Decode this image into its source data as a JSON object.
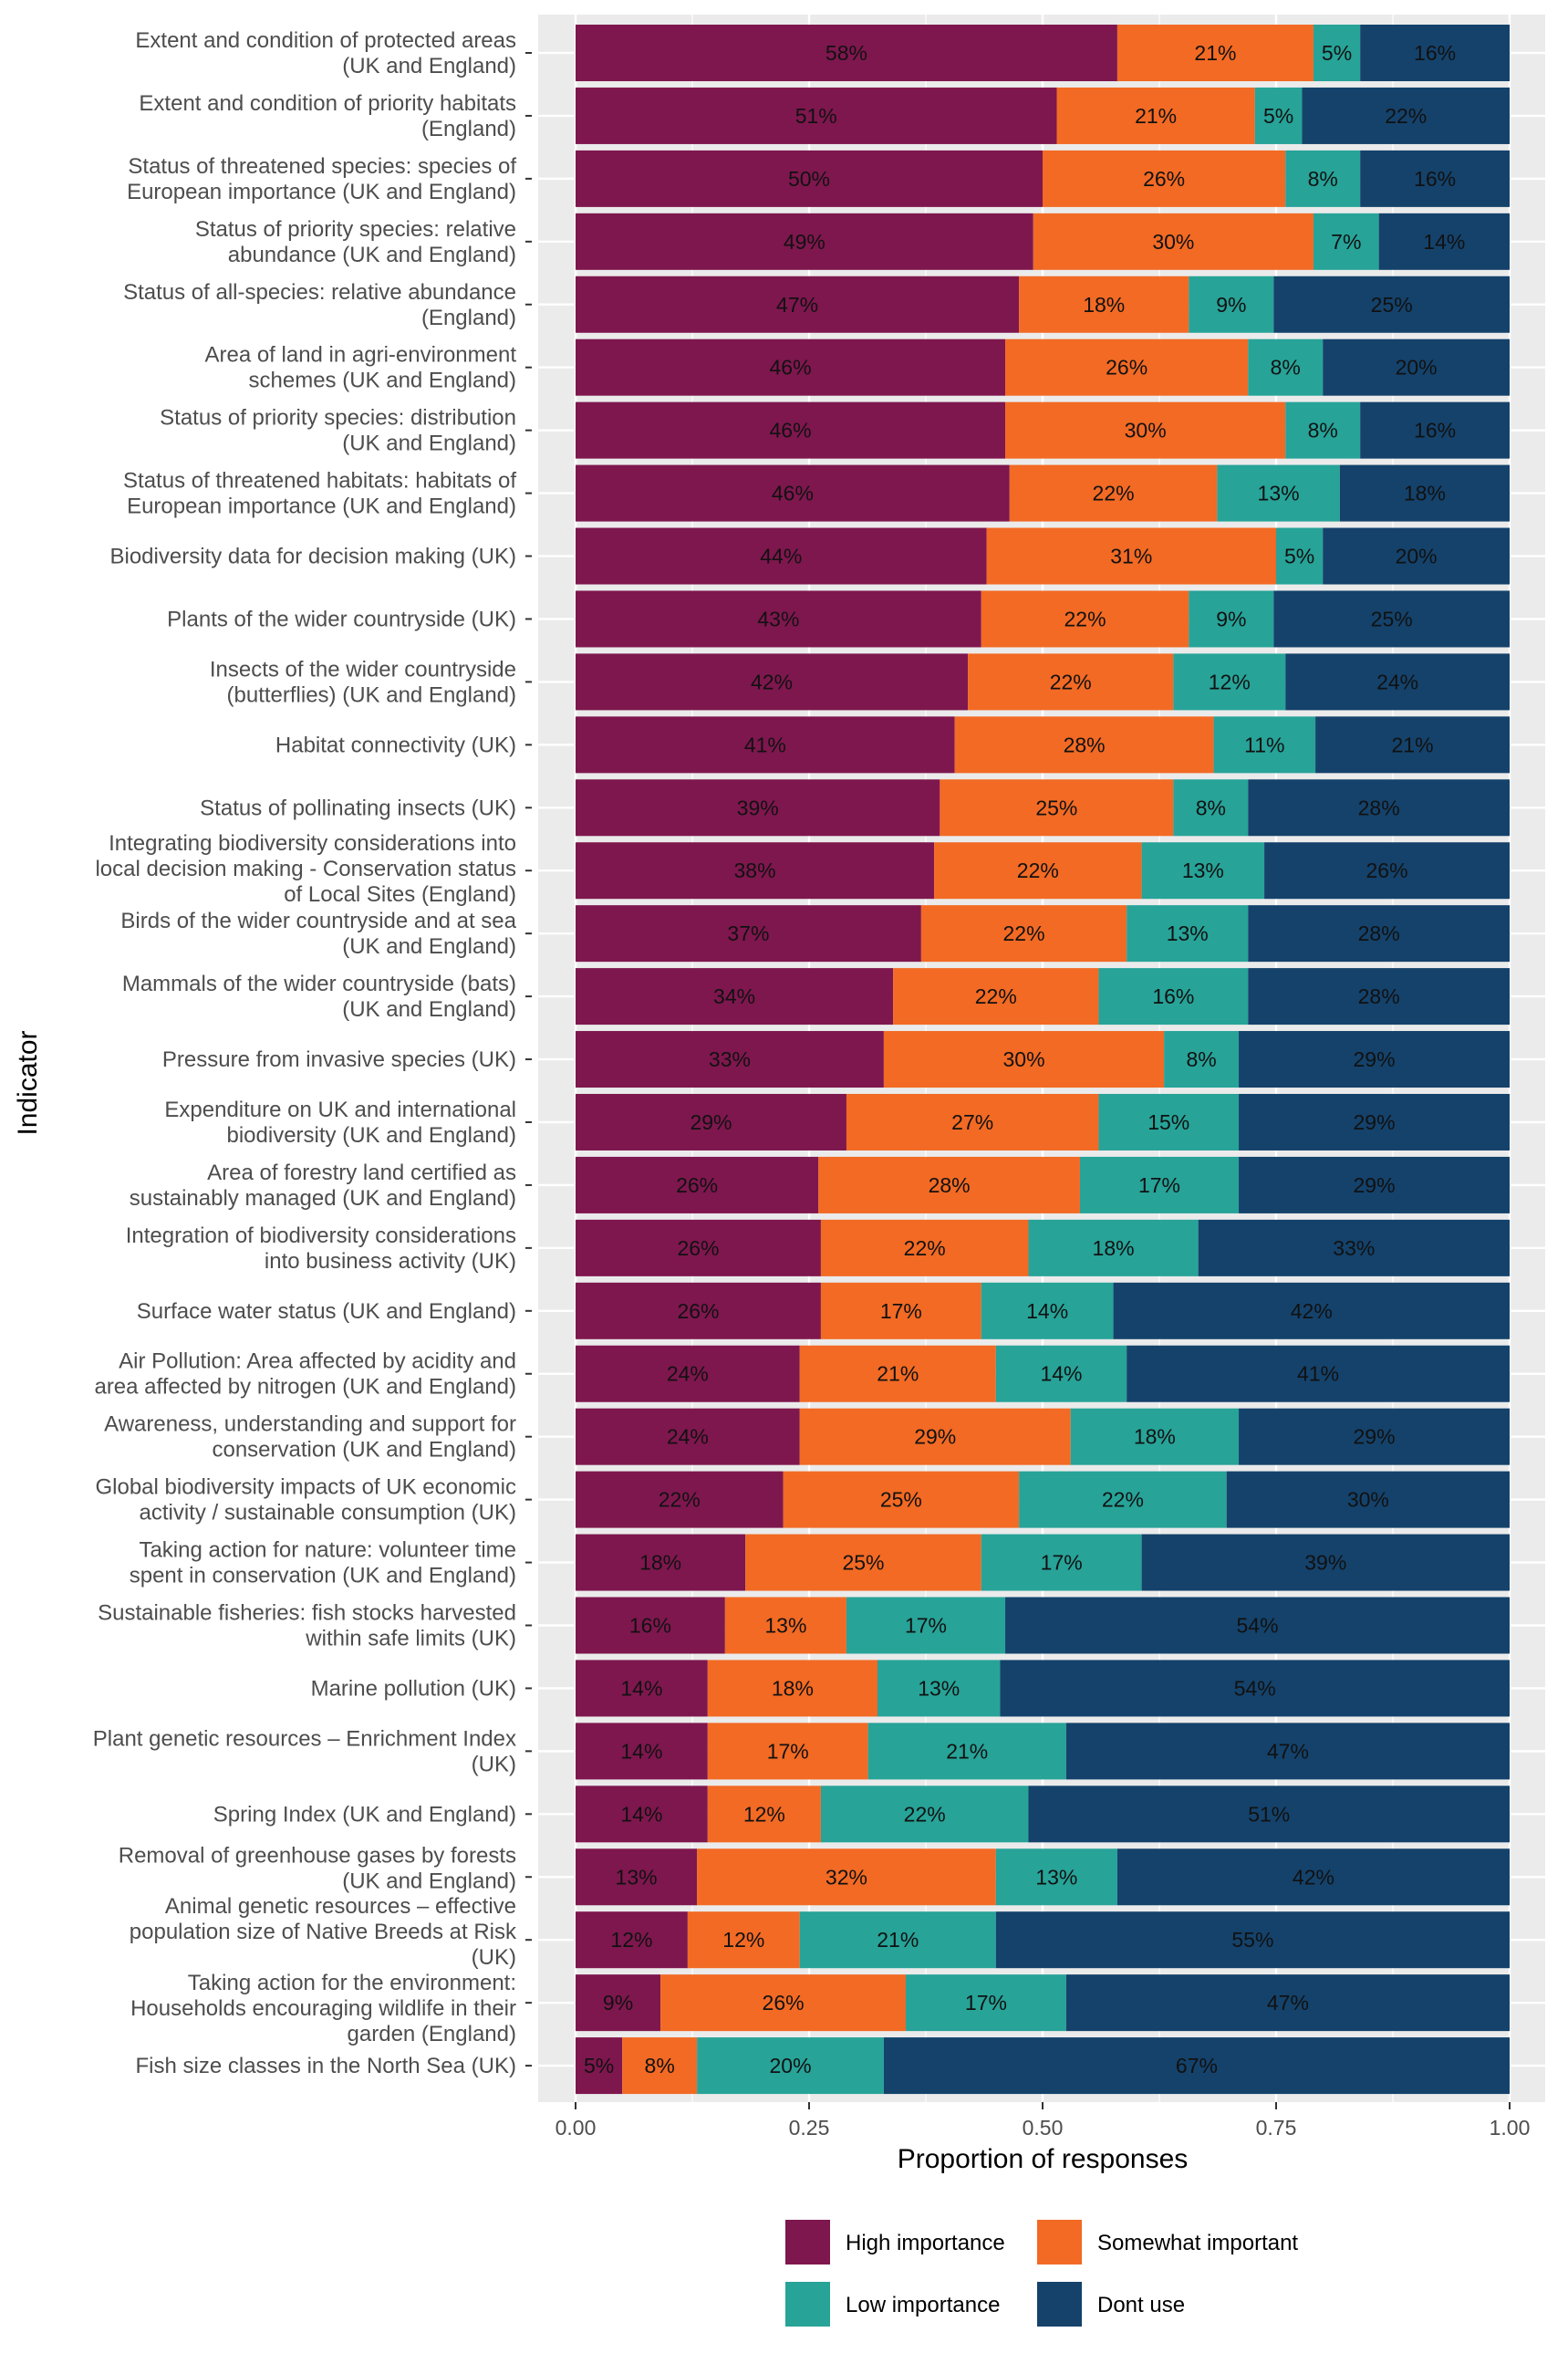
{
  "chart_data": {
    "type": "bar",
    "orientation": "horizontal",
    "stacked": true,
    "xlabel": "Proportion of responses",
    "ylabel": "Indicator",
    "xlim": [
      0,
      1
    ],
    "x_ticks": [
      "0.00",
      "0.25",
      "0.50",
      "0.75",
      "1.00"
    ],
    "grid": true,
    "legend_position": "bottom",
    "series": [
      {
        "name": "High importance",
        "color": "#7E174E"
      },
      {
        "name": "Somewhat important",
        "color": "#F26A24"
      },
      {
        "name": "Low importance",
        "color": "#27A398"
      },
      {
        "name": "Dont use",
        "color": "#14426B"
      }
    ],
    "categories": [
      {
        "label": [
          "Extent and condition of protected areas",
          "(UK and England)"
        ],
        "values": [
          58,
          21,
          5,
          16
        ]
      },
      {
        "label": [
          "Extent and condition of priority habitats",
          "(England)"
        ],
        "values": [
          51,
          21,
          5,
          22
        ]
      },
      {
        "label": [
          "Status of threatened species: species of",
          "European importance  (UK and England)"
        ],
        "values": [
          50,
          26,
          8,
          16
        ]
      },
      {
        "label": [
          "Status of priority species: relative",
          "abundance (UK and England)"
        ],
        "values": [
          49,
          30,
          7,
          14
        ]
      },
      {
        "label": [
          "Status of all-species: relative abundance",
          "(England)"
        ],
        "values": [
          47,
          18,
          9,
          25
        ]
      },
      {
        "label": [
          "Area of land in agri-environment",
          "schemes (UK and England)"
        ],
        "values": [
          46,
          26,
          8,
          20
        ]
      },
      {
        "label": [
          "Status of priority species: distribution",
          "(UK and England)"
        ],
        "values": [
          46,
          30,
          8,
          16
        ]
      },
      {
        "label": [
          "Status of threatened habitats: habitats of",
          "European importance (UK and England)"
        ],
        "values": [
          46,
          22,
          13,
          18
        ]
      },
      {
        "label": [
          "Biodiversity data for decision making (UK)"
        ],
        "values": [
          44,
          31,
          5,
          20
        ]
      },
      {
        "label": [
          "Plants of the wider countryside (UK)"
        ],
        "values": [
          43,
          22,
          9,
          25
        ]
      },
      {
        "label": [
          "Insects of the wider countryside",
          "(butterflies) (UK and England)"
        ],
        "values": [
          42,
          22,
          12,
          24
        ]
      },
      {
        "label": [
          "Habitat connectivity (UK)"
        ],
        "values": [
          41,
          28,
          11,
          21
        ]
      },
      {
        "label": [
          "Status of pollinating insects (UK)"
        ],
        "values": [
          39,
          25,
          8,
          28
        ]
      },
      {
        "label": [
          "Integrating biodiversity considerations into",
          "local decision making - Conservation status",
          "of Local Sites (England)"
        ],
        "values": [
          38,
          22,
          13,
          26
        ]
      },
      {
        "label": [
          "Birds of the wider countryside and at sea",
          "(UK and England)"
        ],
        "values": [
          37,
          22,
          13,
          28
        ]
      },
      {
        "label": [
          "Mammals of the wider countryside (bats)",
          "(UK and England)"
        ],
        "values": [
          34,
          22,
          16,
          28
        ]
      },
      {
        "label": [
          "Pressure from invasive species (UK)"
        ],
        "values": [
          33,
          30,
          8,
          29
        ]
      },
      {
        "label": [
          "Expenditure on UK and international",
          "biodiversity (UK and England)"
        ],
        "values": [
          29,
          27,
          15,
          29
        ]
      },
      {
        "label": [
          "Area of forestry land certified as",
          "sustainably managed (UK and England)"
        ],
        "values": [
          26,
          28,
          17,
          29
        ]
      },
      {
        "label": [
          "Integration of biodiversity considerations",
          "into business activity (UK)"
        ],
        "values": [
          26,
          22,
          18,
          33
        ]
      },
      {
        "label": [
          "Surface water status (UK and England)"
        ],
        "values": [
          26,
          17,
          14,
          42
        ]
      },
      {
        "label": [
          "Air Pollution: Area affected by acidity and",
          "area affected by nitrogen (UK and England)"
        ],
        "values": [
          24,
          21,
          14,
          41
        ]
      },
      {
        "label": [
          "Awareness, understanding and support for",
          "conservation (UK and England)"
        ],
        "values": [
          24,
          29,
          18,
          29
        ]
      },
      {
        "label": [
          "Global biodiversity impacts of UK economic",
          "activity / sustainable consumption (UK)"
        ],
        "values": [
          22,
          25,
          22,
          30
        ]
      },
      {
        "label": [
          "Taking action for nature: volunteer time",
          "spent in conservation (UK and England)"
        ],
        "values": [
          18,
          25,
          17,
          39
        ]
      },
      {
        "label": [
          "Sustainable fisheries: fish stocks harvested",
          "within safe limits (UK)"
        ],
        "values": [
          16,
          13,
          17,
          54
        ]
      },
      {
        "label": [
          "Marine pollution (UK)"
        ],
        "values": [
          14,
          18,
          13,
          54
        ]
      },
      {
        "label": [
          "Plant genetic resources – Enrichment Index",
          "(UK)"
        ],
        "values": [
          14,
          17,
          21,
          47
        ]
      },
      {
        "label": [
          "Spring Index (UK and England)"
        ],
        "values": [
          14,
          12,
          22,
          51
        ]
      },
      {
        "label": [
          "Removal of greenhouse gases by forests",
          "(UK and England)"
        ],
        "values": [
          13,
          32,
          13,
          42
        ]
      },
      {
        "label": [
          "Animal genetic resources – effective",
          "population size of Native Breeds at Risk",
          "(UK)"
        ],
        "values": [
          12,
          12,
          21,
          55
        ]
      },
      {
        "label": [
          "Taking action for the environment:",
          "Households encouraging wildlife in their",
          "garden (England)"
        ],
        "values": [
          9,
          26,
          17,
          47
        ]
      },
      {
        "label": [
          "Fish size classes in the North Sea (UK)"
        ],
        "values": [
          5,
          8,
          20,
          67
        ]
      }
    ]
  }
}
